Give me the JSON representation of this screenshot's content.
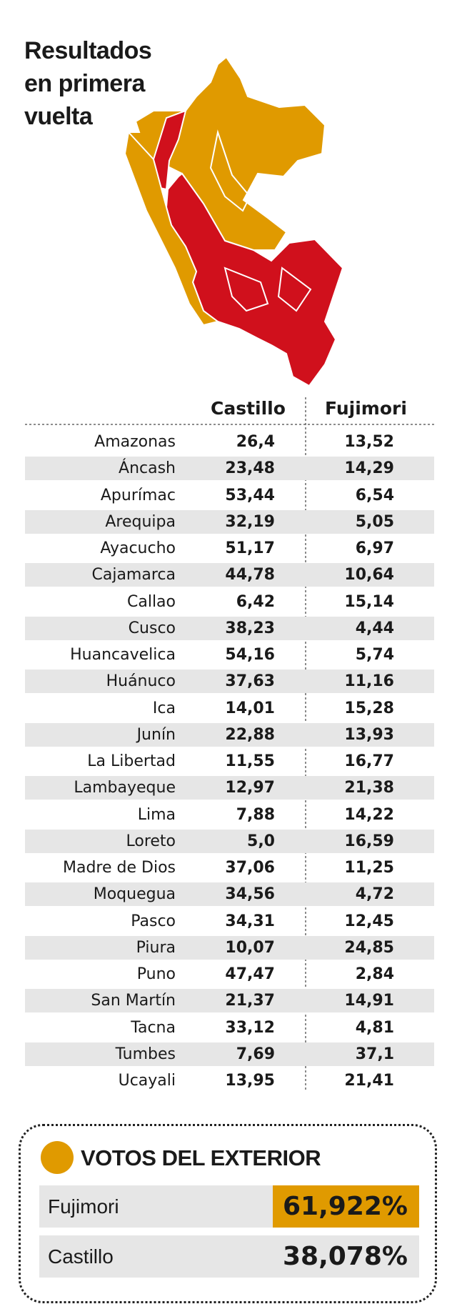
{
  "header": {
    "title_lines": [
      "Resultados",
      "en primera",
      "vuelta"
    ]
  },
  "table": {
    "columns": [
      "Castillo",
      "Fujimori"
    ],
    "rows": [
      [
        "Amazonas",
        "26,4",
        "13,52"
      ],
      [
        "Áncash",
        "23,48",
        "14,29"
      ],
      [
        "Apurímac",
        "53,44",
        "6,54"
      ],
      [
        "Arequipa",
        "32,19",
        "5,05"
      ],
      [
        "Ayacucho",
        "51,17",
        "6,97"
      ],
      [
        "Cajamarca",
        "44,78",
        "10,64"
      ],
      [
        "Callao",
        "6,42",
        "15,14"
      ],
      [
        "Cusco",
        "38,23",
        "4,44"
      ],
      [
        "Huancavelica",
        "54,16",
        "5,74"
      ],
      [
        "Huánuco",
        "37,63",
        "11,16"
      ],
      [
        "Ica",
        "14,01",
        "15,28"
      ],
      [
        "Junín",
        "22,88",
        "13,93"
      ],
      [
        "La Libertad",
        "11,55",
        "16,77"
      ],
      [
        "Lambayeque",
        "12,97",
        "21,38"
      ],
      [
        "Lima",
        "7,88",
        "14,22"
      ],
      [
        "Loreto",
        "5,0",
        "16,59"
      ],
      [
        "Madre de Dios",
        "37,06",
        "11,25"
      ],
      [
        "Moquegua",
        "34,56",
        "4,72"
      ],
      [
        "Pasco",
        "34,31",
        "12,45"
      ],
      [
        "Piura",
        "10,07",
        "24,85"
      ],
      [
        "Puno",
        "47,47",
        "2,84"
      ],
      [
        "San Martín",
        "21,37",
        "14,91"
      ],
      [
        "Tacna",
        "33,12",
        "4,81"
      ],
      [
        "Tumbes",
        "7,69",
        "37,1"
      ],
      [
        "Ucayali",
        "13,95",
        "21,41"
      ]
    ]
  },
  "exterior": {
    "title": "VOTOS DEL EXTERIOR",
    "rows": [
      [
        "Fujimori",
        "61,922%"
      ],
      [
        "Castillo",
        "38,078%"
      ]
    ]
  }
}
